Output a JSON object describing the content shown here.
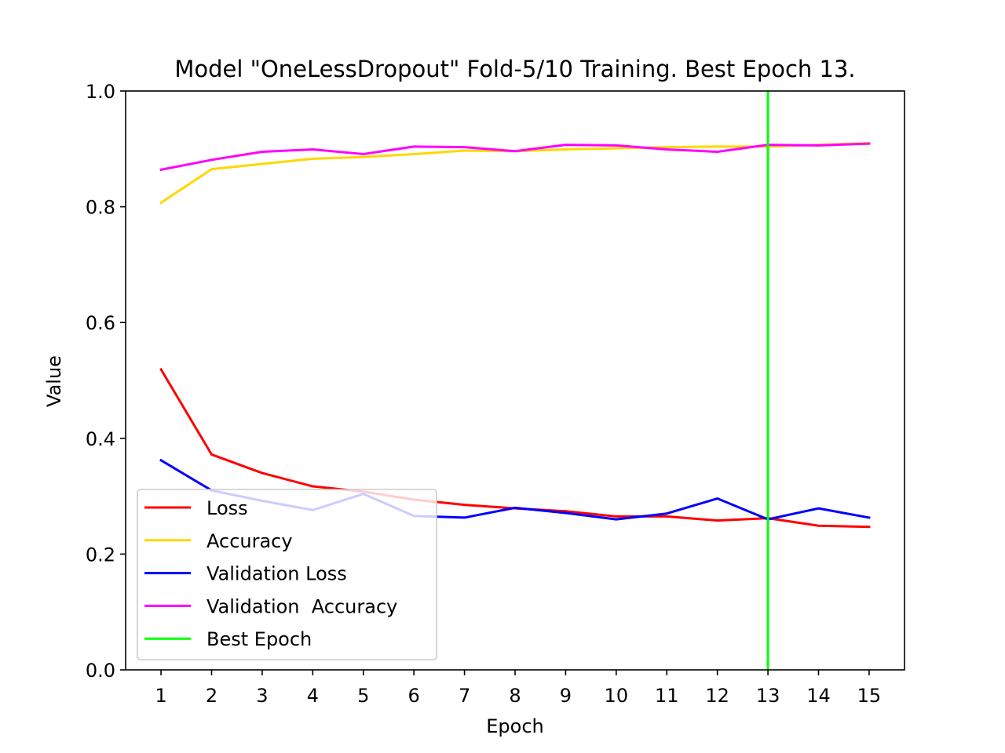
{
  "chart_data": {
    "type": "line",
    "title": "Model \"OneLessDropout\" Fold-5/10 Training. Best Epoch 13.",
    "xlabel": "Epoch",
    "ylabel": "Value",
    "x": [
      1,
      2,
      3,
      4,
      5,
      6,
      7,
      8,
      9,
      10,
      11,
      12,
      13,
      14,
      15
    ],
    "xlim": [
      0.3,
      15.7
    ],
    "ylim": [
      0,
      1
    ],
    "x_ticks": [
      "1",
      "2",
      "3",
      "4",
      "5",
      "6",
      "7",
      "8",
      "9",
      "10",
      "11",
      "12",
      "13",
      "14",
      "15"
    ],
    "y_ticks": [
      "0.0",
      "0.2",
      "0.4",
      "0.6",
      "0.8",
      "1.0"
    ],
    "grid": false,
    "legend_position": "lower-left",
    "series": [
      {
        "name": "Loss",
        "color": "#ff0000",
        "values": [
          0.519,
          0.372,
          0.34,
          0.317,
          0.308,
          0.294,
          0.285,
          0.279,
          0.274,
          0.265,
          0.265,
          0.258,
          0.262,
          0.249,
          0.247
        ]
      },
      {
        "name": "Accuracy",
        "color": "#ffd700",
        "values": [
          0.807,
          0.865,
          0.874,
          0.883,
          0.886,
          0.891,
          0.897,
          0.896,
          0.899,
          0.901,
          0.903,
          0.904,
          0.904,
          0.907,
          0.91
        ]
      },
      {
        "name": "Validation Loss",
        "color": "#0000ff",
        "values": [
          0.362,
          0.31,
          0.292,
          0.276,
          0.304,
          0.266,
          0.263,
          0.28,
          0.271,
          0.26,
          0.27,
          0.296,
          0.26,
          0.279,
          0.263
        ]
      },
      {
        "name": "Validation  Accuracy",
        "color": "#ff00ff",
        "values": [
          0.864,
          0.881,
          0.895,
          0.899,
          0.891,
          0.904,
          0.903,
          0.896,
          0.907,
          0.906,
          0.899,
          0.895,
          0.907,
          0.906,
          0.909
        ]
      }
    ],
    "best_epoch": {
      "name": "Best Epoch",
      "x": 13,
      "color": "#00ff00"
    }
  }
}
